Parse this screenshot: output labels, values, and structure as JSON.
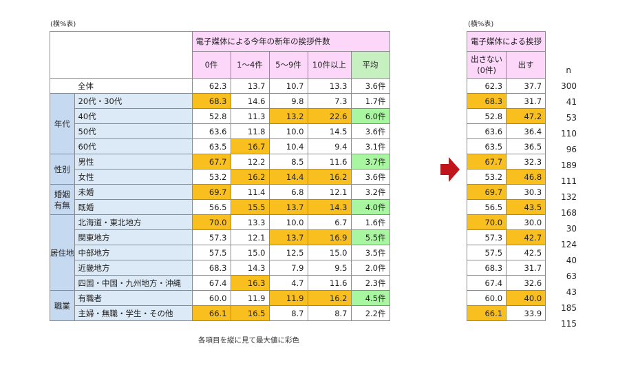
{
  "unit_label": "(横%表)",
  "left_table": {
    "group_header": "電子媒体による今年の新年の挨拶件数",
    "columns": [
      "0件",
      "1～4件",
      "5～9件",
      "10件以上",
      "平均"
    ],
    "groups": [
      {
        "name": "",
        "rows": [
          {
            "label": "全体",
            "values": [
              "62.3",
              "13.7",
              "10.7",
              "13.3",
              "3.6件"
            ],
            "hl": [
              "",
              "",
              "",
              "",
              ""
            ]
          }
        ]
      },
      {
        "name": "年代",
        "rows": [
          {
            "label": "20代・30代",
            "values": [
              "68.3",
              "14.6",
              "9.8",
              "7.3",
              "1.7件"
            ],
            "hl": [
              "o",
              "",
              "",
              "",
              ""
            ]
          },
          {
            "label": "40代",
            "values": [
              "52.8",
              "11.3",
              "13.2",
              "22.6",
              "6.0件"
            ],
            "hl": [
              "",
              "",
              "o",
              "o",
              "g"
            ]
          },
          {
            "label": "50代",
            "values": [
              "63.6",
              "11.8",
              "10.0",
              "14.5",
              "3.6件"
            ],
            "hl": [
              "",
              "",
              "",
              "",
              ""
            ]
          },
          {
            "label": "60代",
            "values": [
              "63.5",
              "16.7",
              "10.4",
              "9.4",
              "3.1件"
            ],
            "hl": [
              "",
              "o",
              "",
              "",
              ""
            ]
          }
        ]
      },
      {
        "name": "性別",
        "rows": [
          {
            "label": "男性",
            "values": [
              "67.7",
              "12.2",
              "8.5",
              "11.6",
              "3.7件"
            ],
            "hl": [
              "o",
              "",
              "",
              "",
              "g"
            ]
          },
          {
            "label": "女性",
            "values": [
              "53.2",
              "16.2",
              "14.4",
              "16.2",
              "3.6件"
            ],
            "hl": [
              "",
              "o",
              "o",
              "o",
              ""
            ]
          }
        ]
      },
      {
        "name": "婚姻\n有無",
        "rows": [
          {
            "label": "未婚",
            "values": [
              "69.7",
              "11.4",
              "6.8",
              "12.1",
              "3.2件"
            ],
            "hl": [
              "o",
              "",
              "",
              "",
              ""
            ]
          },
          {
            "label": "既婚",
            "values": [
              "56.5",
              "15.5",
              "13.7",
              "14.3",
              "4.0件"
            ],
            "hl": [
              "",
              "o",
              "o",
              "o",
              "g"
            ]
          }
        ]
      },
      {
        "name": "居住地",
        "rows": [
          {
            "label": "北海道・東北地方",
            "values": [
              "70.0",
              "13.3",
              "10.0",
              "6.7",
              "1.6件"
            ],
            "hl": [
              "o",
              "",
              "",
              "",
              ""
            ]
          },
          {
            "label": "関東地方",
            "values": [
              "57.3",
              "12.1",
              "13.7",
              "16.9",
              "5.5件"
            ],
            "hl": [
              "",
              "",
              "o",
              "o",
              "g"
            ]
          },
          {
            "label": "中部地方",
            "values": [
              "57.5",
              "15.0",
              "12.5",
              "15.0",
              "3.5件"
            ],
            "hl": [
              "",
              "",
              "",
              "",
              ""
            ]
          },
          {
            "label": "近畿地方",
            "values": [
              "68.3",
              "14.3",
              "7.9",
              "9.5",
              "2.0件"
            ],
            "hl": [
              "",
              "",
              "",
              "",
              ""
            ]
          },
          {
            "label": "四国・中国・九州地方・沖縄",
            "values": [
              "67.4",
              "16.3",
              "4.7",
              "11.6",
              "2.3件"
            ],
            "hl": [
              "",
              "o",
              "",
              "",
              ""
            ]
          }
        ]
      },
      {
        "name": "職業",
        "rows": [
          {
            "label": "有職者",
            "values": [
              "60.0",
              "11.9",
              "11.9",
              "16.2",
              "4.5件"
            ],
            "hl": [
              "",
              "",
              "o",
              "o",
              "g"
            ]
          },
          {
            "label": "主婦・無職・学生・その他",
            "values": [
              "66.1",
              "16.5",
              "8.7",
              "8.7",
              "2.2件"
            ],
            "hl": [
              "o",
              "o",
              "",
              "",
              ""
            ]
          }
        ]
      }
    ],
    "note": "各項目を縦に見て最大値に彩色"
  },
  "right_table": {
    "group_header": "電子媒体による挨拶",
    "columns": [
      "出さない\n(0件)",
      "出す"
    ],
    "rows": [
      {
        "values": [
          "62.3",
          "37.7"
        ],
        "hl": [
          "",
          ""
        ]
      },
      {
        "values": [
          "68.3",
          "31.7"
        ],
        "hl": [
          "o",
          ""
        ]
      },
      {
        "values": [
          "52.8",
          "47.2"
        ],
        "hl": [
          "",
          "o"
        ]
      },
      {
        "values": [
          "63.6",
          "36.4"
        ],
        "hl": [
          "",
          ""
        ]
      },
      {
        "values": [
          "63.5",
          "36.5"
        ],
        "hl": [
          "",
          ""
        ]
      },
      {
        "values": [
          "67.7",
          "32.3"
        ],
        "hl": [
          "o",
          ""
        ]
      },
      {
        "values": [
          "53.2",
          "46.8"
        ],
        "hl": [
          "",
          "o"
        ]
      },
      {
        "values": [
          "69.7",
          "30.3"
        ],
        "hl": [
          "o",
          ""
        ]
      },
      {
        "values": [
          "56.5",
          "43.5"
        ],
        "hl": [
          "",
          "o"
        ]
      },
      {
        "values": [
          "70.0",
          "30.0"
        ],
        "hl": [
          "o",
          ""
        ]
      },
      {
        "values": [
          "57.3",
          "42.7"
        ],
        "hl": [
          "",
          "o"
        ]
      },
      {
        "values": [
          "57.5",
          "42.5"
        ],
        "hl": [
          "",
          ""
        ]
      },
      {
        "values": [
          "68.3",
          "31.7"
        ],
        "hl": [
          "",
          ""
        ]
      },
      {
        "values": [
          "67.4",
          "32.6"
        ],
        "hl": [
          "",
          ""
        ]
      },
      {
        "values": [
          "60.0",
          "40.0"
        ],
        "hl": [
          "",
          "o"
        ]
      },
      {
        "values": [
          "66.1",
          "33.9"
        ],
        "hl": [
          "o",
          ""
        ]
      }
    ]
  },
  "n_header": "n",
  "n_values": [
    "300",
    "41",
    "53",
    "110",
    "96",
    "189",
    "111",
    "132",
    "168",
    "30",
    "124",
    "40",
    "63",
    "43",
    "185",
    "115"
  ],
  "colors": {
    "highlight_max": "#f9bf1f",
    "highlight_avg": "#a8f7a0",
    "header": "#fcd7fa",
    "group_label": "#c5d9f1",
    "row_label": "#dce9f7",
    "arrow": "#c0151b"
  }
}
